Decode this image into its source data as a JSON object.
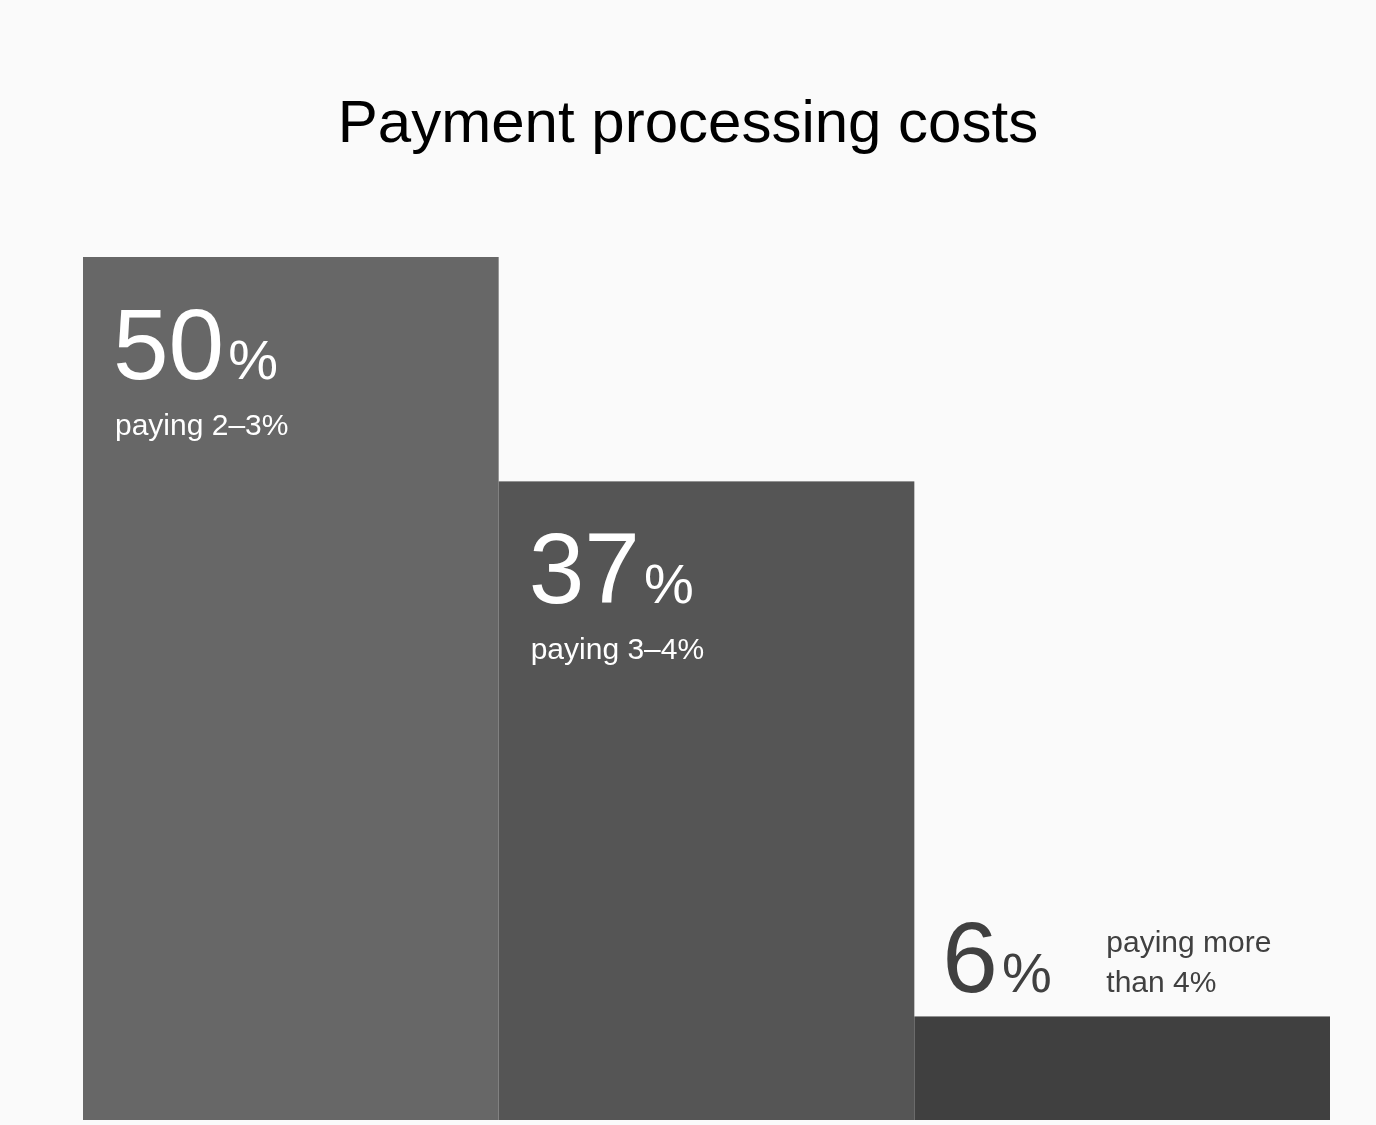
{
  "chart_data": {
    "type": "bar",
    "title": "Payment processing costs",
    "categories": [
      "paying 2–3%",
      "paying 3–4%",
      "paying more than 4%"
    ],
    "values": [
      50,
      37,
      6
    ],
    "colors": [
      "#676767",
      "#555555",
      "#404040"
    ],
    "value_labels": [
      "50%",
      "37%",
      "6%"
    ]
  }
}
